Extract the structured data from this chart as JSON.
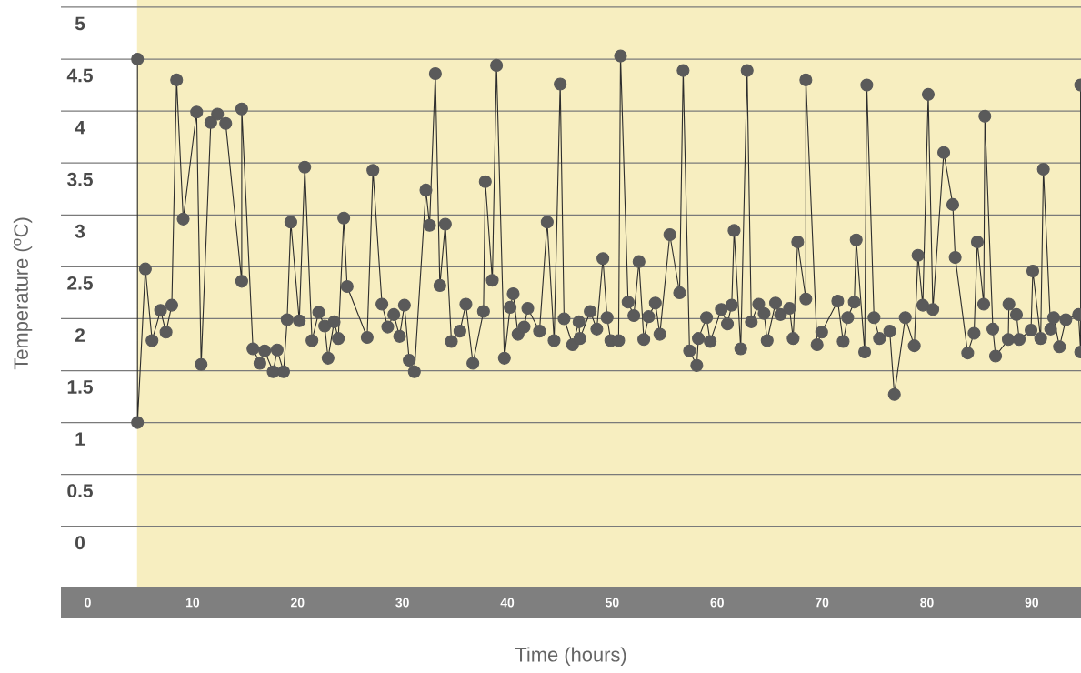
{
  "chart_data": {
    "type": "line",
    "xlabel": "Time (hours)",
    "ylabel": "Temperature ($^{o}$C)",
    "x": [
      4.74,
      4.74,
      5.49,
      6.13,
      6.94,
      7.46,
      8.01,
      8.47,
      9.1,
      10.38,
      10.81,
      11.73,
      12.37,
      13.15,
      14.68,
      14.68,
      15.75,
      16.41,
      16.87,
      17.68,
      18.06,
      18.67,
      19.01,
      19.36,
      20.17,
      20.69,
      21.38,
      22.02,
      22.59,
      22.91,
      23.49,
      23.89,
      24.41,
      24.73,
      26.64,
      27.19,
      28.05,
      28.6,
      29.18,
      29.73,
      30.19,
      30.65,
      31.14,
      32.24,
      32.59,
      33.14,
      33.57,
      34.09,
      34.67,
      35.48,
      36.05,
      36.72,
      37.73,
      37.9,
      38.57,
      38.97,
      39.72,
      40.27,
      40.56,
      41.02,
      41.6,
      41.95,
      43.07,
      43.8,
      44.46,
      45.04,
      45.41,
      46.22,
      46.83,
      46.92,
      47.9,
      48.53,
      49.11,
      49.51,
      49.86,
      50.61,
      50.79,
      51.51,
      52.06,
      52.55,
      53.01,
      53.47,
      54.11,
      54.54,
      55.49,
      56.42,
      56.76,
      57.37,
      58.06,
      58.21,
      58.99,
      59.34,
      60.4,
      60.98,
      61.39,
      61.62,
      62.25,
      62.86,
      63.26,
      63.96,
      64.48,
      64.77,
      65.57,
      66.04,
      66.9,
      67.25,
      67.68,
      68.46,
      68.46,
      69.53,
      69.97,
      71.5,
      72.02,
      72.45,
      73.08,
      73.26,
      74.07,
      74.27,
      74.96,
      75.48,
      76.46,
      76.9,
      77.94,
      78.8,
      79.15,
      79.61,
      80.13,
      80.57,
      81.61,
      82.47,
      82.7,
      83.89,
      84.5,
      84.81,
      85.42,
      85.53,
      86.29,
      86.55,
      87.76,
      87.82,
      88.54,
      88.8,
      89.93,
      90.1,
      90.85,
      91.11,
      91.8,
      92.09,
      92.64,
      93.25,
      94.46,
      94.66,
      94.66
    ],
    "values": [
      4.5,
      1.0,
      2.48,
      1.79,
      2.08,
      1.87,
      2.13,
      4.3,
      2.96,
      3.99,
      1.56,
      3.89,
      3.97,
      3.88,
      2.36,
      4.02,
      1.71,
      1.57,
      1.69,
      1.49,
      1.7,
      1.49,
      1.99,
      2.93,
      1.98,
      3.46,
      1.79,
      2.06,
      1.93,
      1.62,
      1.97,
      1.81,
      2.97,
      2.31,
      1.82,
      3.43,
      2.14,
      1.92,
      2.04,
      1.83,
      2.13,
      1.6,
      1.49,
      3.24,
      2.9,
      4.36,
      2.32,
      2.91,
      1.78,
      1.88,
      2.14,
      1.57,
      2.07,
      3.32,
      2.37,
      4.44,
      1.62,
      2.11,
      2.24,
      1.85,
      1.92,
      2.1,
      1.88,
      2.93,
      1.79,
      4.26,
      2.0,
      1.75,
      1.97,
      1.81,
      2.07,
      1.9,
      2.58,
      2.01,
      1.79,
      1.79,
      4.53,
      2.16,
      2.03,
      2.55,
      1.8,
      2.02,
      2.15,
      1.85,
      2.81,
      2.25,
      4.39,
      1.69,
      1.55,
      1.81,
      2.01,
      1.78,
      2.09,
      1.95,
      2.13,
      2.85,
      1.71,
      4.39,
      1.97,
      2.14,
      2.05,
      1.79,
      2.15,
      2.04,
      2.1,
      1.81,
      2.74,
      2.19,
      4.3,
      1.75,
      1.87,
      2.17,
      1.78,
      2.01,
      2.16,
      2.76,
      1.68,
      4.25,
      2.01,
      1.81,
      1.88,
      1.27,
      2.01,
      1.74,
      2.61,
      2.13,
      4.16,
      2.09,
      3.6,
      3.1,
      2.59,
      1.67,
      1.86,
      2.74,
      2.14,
      3.95,
      1.9,
      1.64,
      1.8,
      2.14,
      2.04,
      1.8,
      1.89,
      2.46,
      1.81,
      3.44,
      1.9,
      2.01,
      1.73,
      1.99,
      2.04,
      1.68,
      4.25
    ],
    "color": "#5a5a5a",
    "marker": "circle",
    "line_style": "solid",
    "grid": "y",
    "xlim": [
      -2.56,
      94.7
    ],
    "ylim": [
      -0.58,
      5.07
    ],
    "xticks": [
      0,
      10,
      20,
      30,
      40,
      50,
      60,
      70,
      80,
      90
    ],
    "yticks": [
      0,
      0.5,
      1,
      1.5,
      2,
      2.5,
      3,
      3.5,
      4,
      4.5,
      5
    ],
    "bands": [
      {
        "axis": "x",
        "from": 4.7,
        "to": 94.7,
        "color": "#f7eec0"
      }
    ]
  }
}
